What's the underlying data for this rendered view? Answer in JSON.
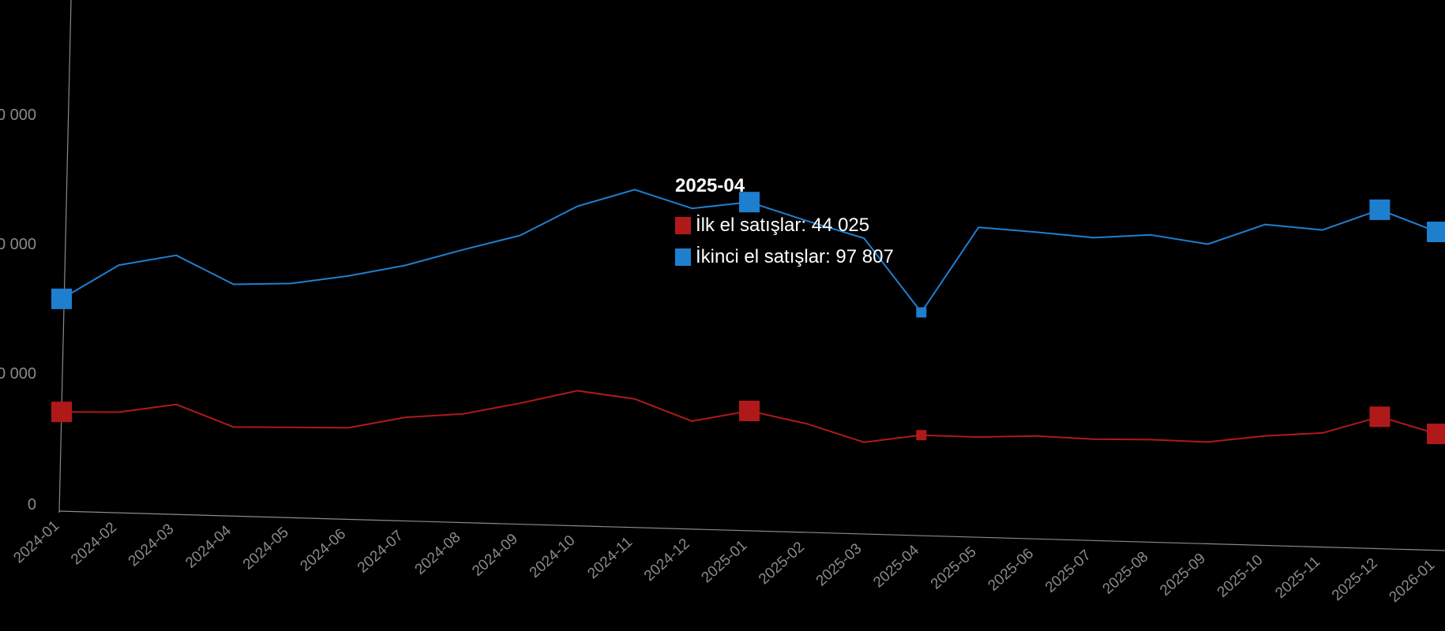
{
  "chart_data": {
    "type": "line",
    "x": [
      "2024-01",
      "2024-02",
      "2024-03",
      "2024-04",
      "2024-05",
      "2024-06",
      "2024-07",
      "2024-08",
      "2024-09",
      "2024-10",
      "2024-11",
      "2024-12",
      "2025-01",
      "2025-02",
      "2025-03",
      "2025-04",
      "2025-05",
      "2025-06",
      "2025-07",
      "2025-08",
      "2025-09",
      "2025-10",
      "2025-11",
      "2025-12",
      "2026-01"
    ],
    "series": [
      {
        "name": "İlk el satışlar",
        "color": "#b0191a",
        "values": [
          43500,
          44100,
          48200,
          39000,
          39600,
          40100,
          45400,
          47600,
          53000,
          59200,
          56300,
          47300,
          52500,
          47600,
          40200,
          44025,
          43900,
          45100,
          44400,
          44900,
          44600,
          48000,
          50000,
          57800,
          51000
        ],
        "markers": [
          "2024-01",
          "2025-01",
          "2025-04",
          "2025-12",
          "2026-01"
        ]
      },
      {
        "name": "İkinci el satışlar",
        "color": "#1f7fcf",
        "values": [
          93000,
          108500,
          113500,
          101500,
          102600,
          106600,
          112000,
          119500,
          126500,
          140000,
          148000,
          140500,
          144000,
          136500,
          129600,
          97807,
          135800,
          134400,
          132700,
          134600,
          131300,
          140600,
          138900,
          148500,
          139500
        ],
        "markers": [
          "2024-01",
          "2025-01",
          "2025-04",
          "2025-12",
          "2026-01"
        ]
      }
    ],
    "y_ticks": [
      "0",
      "0 000",
      "0 000",
      "0 000"
    ],
    "ylim": [
      0,
      170000
    ],
    "grid": false,
    "legend": "none"
  },
  "tooltip": {
    "title": "2025-04",
    "separator": ": ",
    "rows": [
      {
        "label": "İlk el satışlar",
        "value": "44 025",
        "color": "#b0191a"
      },
      {
        "label": "İkinci el satışlar",
        "value": "97 807",
        "color": "#1f7fcf"
      }
    ]
  }
}
